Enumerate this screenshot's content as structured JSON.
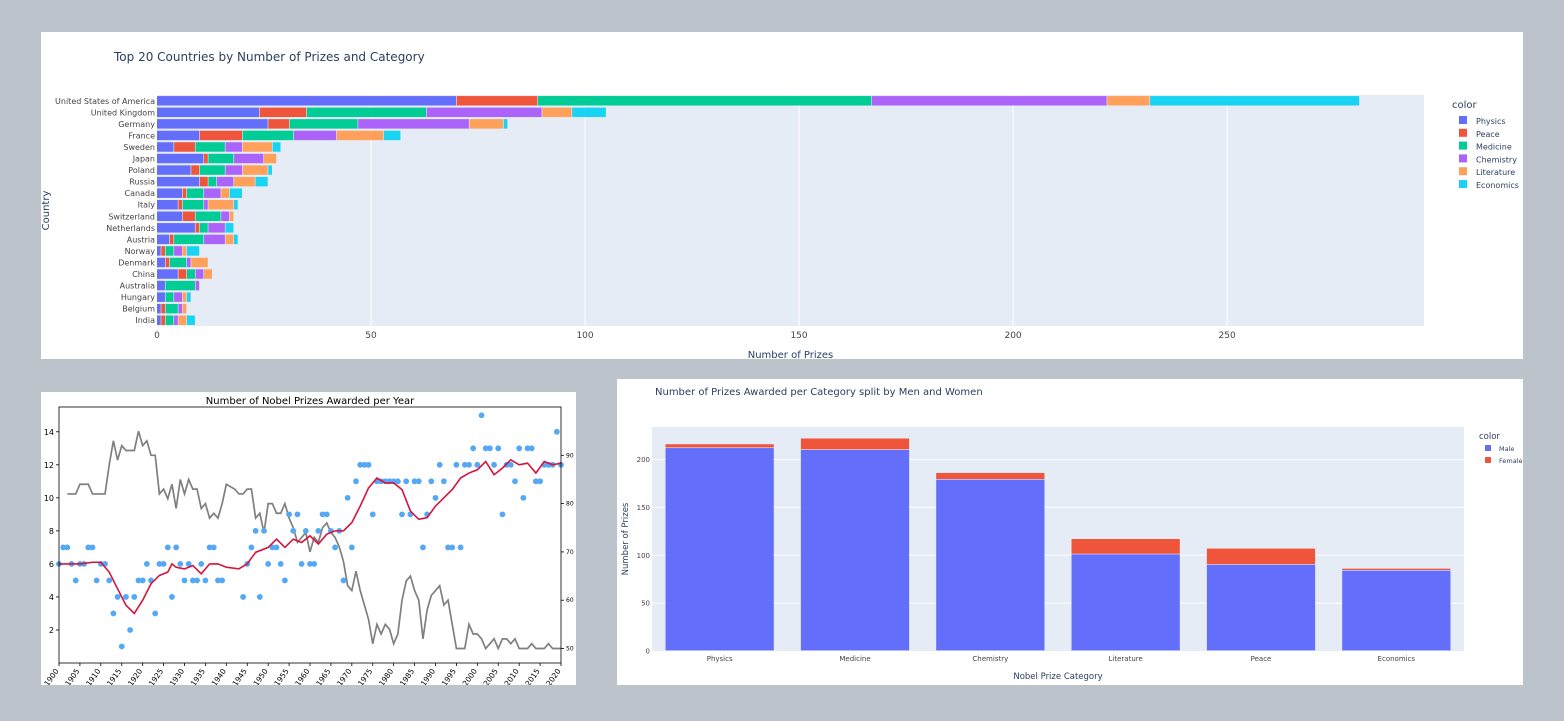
{
  "chart_data": [
    {
      "type": "bar",
      "orientation": "horizontal",
      "stacked": true,
      "title": "Top 20 Countries by Number of Prizes and Category",
      "xlabel": "Number of Prizes",
      "ylabel": "Country",
      "xlim": [
        0,
        296
      ],
      "x_ticks": [
        0,
        50,
        100,
        150,
        200,
        250
      ],
      "legend_title": "color",
      "legend_position": "right",
      "grid": true,
      "categories": [
        "United States of America",
        "United Kingdom",
        "Germany",
        "France",
        "Sweden",
        "Japan",
        "Poland",
        "Russia",
        "Canada",
        "Italy",
        "Switzerland",
        "Netherlands",
        "Austria",
        "Norway",
        "Denmark",
        "China",
        "Australia",
        "Hungary",
        "Belgium",
        "India"
      ],
      "series": [
        {
          "name": "Physics",
          "color": "#636efa",
          "values": [
            70,
            24,
            26,
            10,
            4,
            11,
            8,
            10,
            6,
            5,
            6,
            9,
            3,
            1,
            2,
            5,
            2,
            2,
            1,
            1
          ]
        },
        {
          "name": "Peace",
          "color": "#ef553b",
          "values": [
            19,
            11,
            5,
            10,
            5,
            1,
            2,
            2,
            1,
            1,
            3,
            1,
            1,
            1,
            1,
            2,
            0,
            0,
            1,
            1
          ]
        },
        {
          "name": "Medicine",
          "color": "#00cc96",
          "values": [
            78,
            28,
            16,
            12,
            7,
            6,
            6,
            2,
            4,
            5,
            6,
            2,
            7,
            2,
            4,
            2,
            7,
            2,
            3,
            2
          ]
        },
        {
          "name": "Chemistry",
          "color": "#ab63fa",
          "values": [
            55,
            27,
            26,
            10,
            4,
            7,
            4,
            4,
            4,
            1,
            2,
            4,
            5,
            2,
            1,
            2,
            1,
            2,
            1,
            1
          ]
        },
        {
          "name": "Literature",
          "color": "#ffa15a",
          "values": [
            10,
            7,
            8,
            11,
            7,
            3,
            6,
            5,
            2,
            6,
            1,
            0,
            2,
            1,
            4,
            2,
            0,
            1,
            1,
            2
          ]
        },
        {
          "name": "Economics",
          "color": "#19d3f3",
          "values": [
            49,
            8,
            1,
            4,
            2,
            0,
            1,
            3,
            3,
            1,
            0,
            2,
            1,
            3,
            0,
            0,
            0,
            1,
            0,
            2
          ]
        }
      ]
    },
    {
      "type": "scatter+line",
      "title": "Number of Nobel Prizes Awarded per Year",
      "xlabel": "",
      "ylabel": "",
      "xlim": [
        1900,
        2020
      ],
      "ylim": [
        0,
        15.5
      ],
      "y2lim": [
        47,
        100
      ],
      "x_ticks": [
        1900,
        1905,
        1910,
        1915,
        1920,
        1925,
        1930,
        1935,
        1940,
        1945,
        1950,
        1955,
        1960,
        1965,
        1970,
        1975,
        1980,
        1985,
        1990,
        1995,
        2000,
        2005,
        2010,
        2015,
        2020
      ],
      "y_ticks": [
        2,
        4,
        6,
        8,
        10,
        12,
        14
      ],
      "y2_ticks": [
        50,
        60,
        70,
        80,
        90
      ],
      "grid": false,
      "series": [
        {
          "name": "prizes_per_year",
          "kind": "scatter",
          "color": "#54a8f5",
          "x": [
            1900,
            1901,
            1902,
            1903,
            1904,
            1905,
            1906,
            1907,
            1908,
            1909,
            1910,
            1911,
            1912,
            1913,
            1914,
            1915,
            1916,
            1917,
            1918,
            1919,
            1920,
            1921,
            1922,
            1923,
            1924,
            1925,
            1926,
            1927,
            1928,
            1929,
            1930,
            1931,
            1932,
            1933,
            1934,
            1935,
            1936,
            1937,
            1938,
            1939,
            1944,
            1945,
            1946,
            1947,
            1948,
            1949,
            1950,
            1951,
            1952,
            1953,
            1954,
            1955,
            1956,
            1957,
            1958,
            1959,
            1960,
            1961,
            1962,
            1963,
            1964,
            1965,
            1966,
            1967,
            1968,
            1969,
            1970,
            1971,
            1972,
            1973,
            1974,
            1975,
            1976,
            1977,
            1978,
            1979,
            1980,
            1981,
            1982,
            1983,
            1984,
            1985,
            1986,
            1987,
            1988,
            1989,
            1990,
            1991,
            1992,
            1993,
            1994,
            1995,
            1996,
            1997,
            1998,
            1999,
            2000,
            2001,
            2002,
            2003,
            2004,
            2005,
            2006,
            2007,
            2008,
            2009,
            2010,
            2011,
            2012,
            2013,
            2014,
            2015,
            2016,
            2017,
            2018,
            2019,
            2020
          ],
          "y": [
            6,
            7,
            7,
            6,
            5,
            6,
            6,
            7,
            7,
            5,
            6,
            6,
            5,
            3,
            4,
            1,
            4,
            2,
            4,
            5,
            5,
            6,
            5,
            3,
            6,
            6,
            7,
            4,
            7,
            6,
            5,
            6,
            5,
            5,
            6,
            5,
            7,
            7,
            5,
            5,
            4,
            6,
            7,
            8,
            4,
            8,
            6,
            7,
            7,
            6,
            5,
            9,
            8,
            9,
            6,
            8,
            6,
            6,
            8,
            9,
            9,
            8,
            7,
            8,
            5,
            10,
            7,
            11,
            12,
            12,
            12,
            9,
            11,
            11,
            11,
            11,
            11,
            11,
            9,
            11,
            9,
            11,
            11,
            7,
            9,
            11,
            10,
            12,
            11,
            7,
            7,
            12,
            7,
            12,
            12,
            13,
            12,
            15,
            13,
            13,
            12,
            13,
            9,
            12,
            12,
            11,
            13,
            10,
            13,
            13,
            11,
            11,
            12,
            12,
            12,
            14,
            12
          ]
        },
        {
          "name": "rolling_mean",
          "kind": "line",
          "color": "#d4143c",
          "x": [
            1900,
            1905,
            1908,
            1910,
            1912,
            1914,
            1916,
            1918,
            1920,
            1922,
            1924,
            1926,
            1927,
            1928,
            1930,
            1932,
            1934,
            1936,
            1938,
            1940,
            1943,
            1945,
            1947,
            1950,
            1952,
            1954,
            1956,
            1958,
            1960,
            1962,
            1964,
            1966,
            1968,
            1970,
            1972,
            1974,
            1976,
            1978,
            1980,
            1982,
            1984,
            1986,
            1988,
            1990,
            1992,
            1994,
            1996,
            1998,
            2000,
            2002,
            2004,
            2006,
            2008,
            2010,
            2012,
            2014,
            2016,
            2018,
            2020
          ],
          "y": [
            6,
            6,
            6.1,
            6.1,
            5.5,
            4.5,
            3.5,
            3,
            3.8,
            4.8,
            5.3,
            5.5,
            6,
            5.8,
            5.7,
            5.9,
            5.4,
            6,
            6,
            5.8,
            5.7,
            6,
            6.7,
            7,
            7.5,
            7,
            7.5,
            7.3,
            7.7,
            7.2,
            7.8,
            8,
            8,
            8.5,
            9.5,
            10.6,
            11.2,
            10.9,
            10.9,
            10.5,
            9.2,
            8.7,
            8.8,
            9.5,
            10,
            10.5,
            11.2,
            11.5,
            11.7,
            12.2,
            11.4,
            11.8,
            12.3,
            12,
            12.1,
            11.5,
            12.2,
            12,
            12.1
          ]
        },
        {
          "name": "secondary_series",
          "kind": "line",
          "axis": "right",
          "color": "#7f7f7f",
          "x": [
            1902,
            1904,
            1905,
            1907,
            1908,
            1909,
            1910,
            1911,
            1912,
            1913,
            1914,
            1915,
            1916,
            1917,
            1918,
            1919,
            1920,
            1921,
            1922,
            1923,
            1924,
            1925,
            1926,
            1927,
            1928,
            1929,
            1930,
            1931,
            1932,
            1933,
            1934,
            1935,
            1936,
            1937,
            1938,
            1939,
            1940,
            1942,
            1943,
            1944,
            1945,
            1946,
            1947,
            1948,
            1949,
            1950,
            1951,
            1952,
            1953,
            1954,
            1955,
            1956,
            1957,
            1958,
            1959,
            1960,
            1961,
            1962,
            1963,
            1964,
            1965,
            1966,
            1967,
            1968,
            1969,
            1970,
            1971,
            1972,
            1973,
            1974,
            1975,
            1976,
            1977,
            1978,
            1979,
            1980,
            1981,
            1982,
            1983,
            1984,
            1985,
            1986,
            1987,
            1988,
            1989,
            1990,
            1991,
            1992,
            1993,
            1994,
            1995,
            1996,
            1997,
            1998,
            1999,
            2000,
            2001,
            2002,
            2003,
            2004,
            2005,
            2006,
            2007,
            2008,
            2009,
            2010,
            2011,
            2012,
            2013,
            2014,
            2015,
            2016,
            2017,
            2018,
            2019,
            2020
          ],
          "y": [
            82,
            82,
            84,
            84,
            82,
            82,
            82,
            82,
            88,
            93,
            89,
            92,
            91,
            91,
            91,
            95,
            92,
            93,
            90,
            90,
            82,
            83,
            81,
            84,
            79,
            85,
            82,
            85,
            83,
            83,
            79,
            80,
            77,
            78,
            77,
            80,
            84,
            83,
            82,
            82,
            83,
            83,
            77,
            78,
            74,
            80,
            80,
            78,
            78,
            80,
            77,
            75,
            72,
            73,
            74,
            70,
            73,
            72,
            75,
            76,
            74,
            73,
            71,
            68,
            63,
            62,
            66,
            62,
            59,
            56,
            51,
            55,
            53,
            55,
            54,
            51,
            53,
            60,
            64,
            65,
            62,
            60,
            52,
            58,
            61,
            62,
            63,
            59,
            60,
            55,
            50,
            50,
            50,
            55,
            53,
            53,
            52,
            50,
            51,
            52,
            50,
            52,
            52,
            51,
            52,
            50,
            50,
            50,
            51,
            50,
            50,
            50,
            51,
            50,
            50,
            50
          ]
        }
      ]
    },
    {
      "type": "bar",
      "stacked": true,
      "title": "Number of Prizes Awarded per Category split by Men and Women",
      "xlabel": "Nobel Prize Category",
      "ylabel": "Number of Prizes",
      "ylim": [
        0,
        234
      ],
      "y_ticks": [
        0,
        50,
        100,
        150,
        200
      ],
      "legend_title": "color",
      "legend_position": "right",
      "grid": true,
      "categories": [
        "Physics",
        "Medicine",
        "Chemistry",
        "Literature",
        "Peace",
        "Economics"
      ],
      "series": [
        {
          "name": "Male",
          "color": "#636efa",
          "values": [
            212,
            210,
            179,
            101,
            90,
            84
          ]
        },
        {
          "name": "Female",
          "color": "#ef553b",
          "values": [
            4,
            12,
            7,
            16,
            17,
            2
          ]
        }
      ]
    }
  ]
}
